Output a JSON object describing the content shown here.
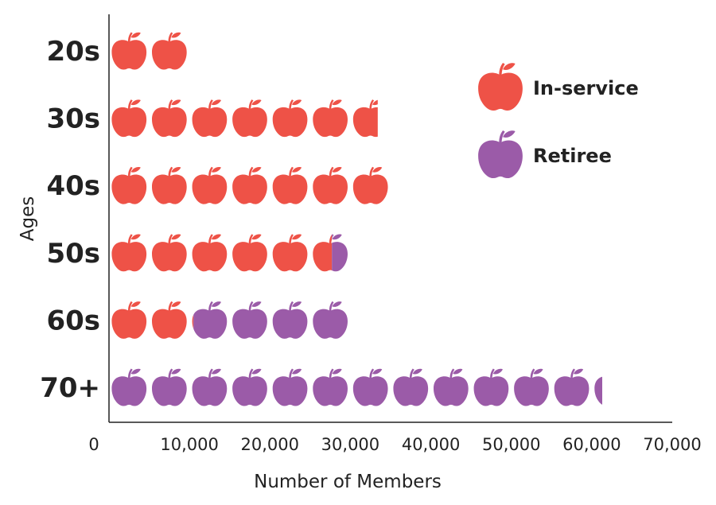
{
  "chart_data": {
    "type": "bar",
    "orientation": "horizontal",
    "stacked": true,
    "marker": "apple-icon",
    "units_per_icon": 5000,
    "categories": [
      "20s",
      "30s",
      "40s",
      "50s",
      "60s",
      "70+"
    ],
    "series": [
      {
        "name": "In-service",
        "color": "#ee5247",
        "values": [
          10300,
          33400,
          35300,
          27700,
          10500,
          0
        ]
      },
      {
        "name": "Retiree",
        "color": "#9b5ba8",
        "values": [
          0,
          0,
          0,
          2500,
          19500,
          61300
        ]
      }
    ],
    "xlabel": "Number of Members",
    "ylabel": "Ages",
    "xlim": [
      0,
      70000
    ],
    "xticks": [
      "0",
      "10,000",
      "20,000",
      "30,000",
      "40,000",
      "50,000",
      "60,000",
      "70,000"
    ],
    "legend_position": "top-right",
    "grid": false
  }
}
